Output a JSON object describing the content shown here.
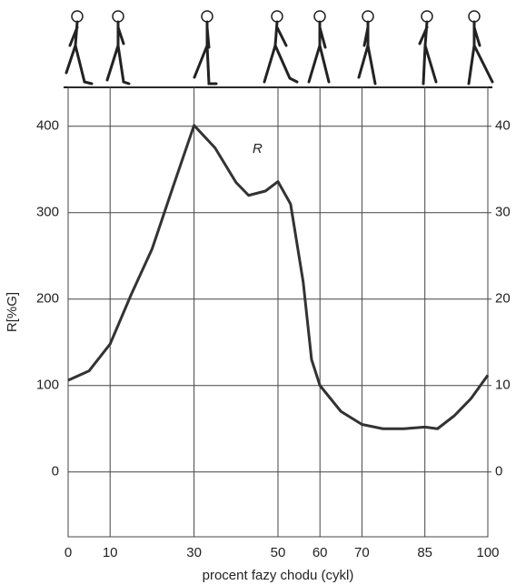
{
  "chart_data": {
    "type": "line",
    "x_label": "procent fazy chodu (cykl)",
    "y_label": "R[%G]",
    "annotation": "R",
    "x": [
      0,
      5,
      10,
      15,
      20,
      25,
      30,
      35,
      40,
      43,
      47,
      50,
      53,
      56,
      58,
      60,
      65,
      70,
      75,
      80,
      85,
      88,
      92,
      96,
      100
    ],
    "values": [
      106,
      117,
      148,
      205,
      258,
      330,
      401,
      375,
      335,
      320,
      325,
      336,
      310,
      220,
      130,
      100,
      70,
      55,
      50,
      50,
      52,
      50,
      65,
      85,
      112
    ],
    "color": "#333333",
    "xlim": [
      0,
      100
    ],
    "xticks": [
      0,
      10,
      30,
      50,
      60,
      70,
      85,
      100
    ],
    "ylim": [
      -75,
      445
    ],
    "yticks": [
      0,
      100,
      200,
      300,
      400
    ],
    "y2lim": [
      -7.5,
      44.5
    ],
    "y2ticks": [
      0,
      10,
      20,
      30,
      40
    ],
    "grid": true
  }
}
